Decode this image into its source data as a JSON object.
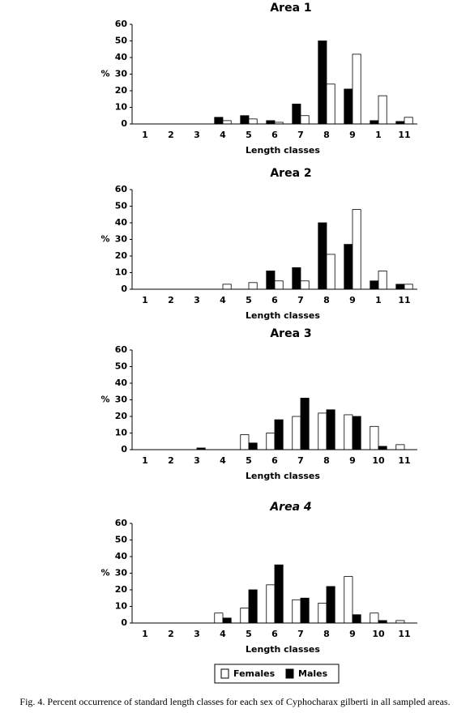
{
  "chart_data": [
    {
      "type": "bar",
      "title": "Area 1",
      "ylabel": "%",
      "xlabel": "Length classes",
      "categories": [
        "1",
        "2",
        "3",
        "4",
        "5",
        "6",
        "7",
        "8",
        "9",
        "1",
        "11"
      ],
      "series": [
        {
          "color": "#000000",
          "values": [
            0,
            0,
            0,
            4,
            5,
            2,
            12,
            50,
            21,
            2,
            1.5
          ]
        },
        {
          "color": "#ffffff",
          "values": [
            0,
            0,
            0,
            2,
            3,
            1,
            5,
            24,
            42,
            17,
            4
          ]
        }
      ],
      "ylim": [
        0,
        60
      ],
      "yticks": [
        0,
        10,
        20,
        30,
        40,
        50,
        60
      ]
    },
    {
      "type": "bar",
      "title": "Area 2",
      "ylabel": "%",
      "xlabel": "Length classes",
      "categories": [
        "1",
        "2",
        "3",
        "4",
        "5",
        "6",
        "7",
        "8",
        "9",
        "1",
        "11"
      ],
      "series": [
        {
          "color": "#000000",
          "values": [
            0,
            0,
            0,
            0,
            0,
            11,
            13,
            40,
            27,
            5,
            3
          ]
        },
        {
          "color": "#ffffff",
          "values": [
            0,
            0,
            0,
            3,
            4,
            5,
            5,
            21,
            48,
            11,
            3
          ]
        }
      ],
      "ylim": [
        0,
        60
      ],
      "yticks": [
        0,
        10,
        20,
        30,
        40,
        50,
        60
      ]
    },
    {
      "type": "bar",
      "title": "Area 3",
      "ylabel": "%",
      "xlabel": "Length classes",
      "categories": [
        "1",
        "2",
        "3",
        "4",
        "5",
        "6",
        "7",
        "8",
        "9",
        "10",
        "11"
      ],
      "series": [
        {
          "color": "#ffffff",
          "values": [
            0,
            0,
            0,
            0,
            9,
            10,
            20,
            22,
            21,
            14,
            3
          ]
        },
        {
          "color": "#000000",
          "values": [
            0,
            0,
            1,
            0,
            4,
            18,
            31,
            24,
            20,
            2,
            0
          ]
        }
      ],
      "ylim": [
        0,
        60
      ],
      "yticks": [
        0,
        10,
        20,
        30,
        40,
        50,
        60
      ]
    },
    {
      "type": "bar",
      "title": "Area 4",
      "ylabel": "%",
      "xlabel": "Length classes",
      "categories": [
        "1",
        "2",
        "3",
        "4",
        "5",
        "6",
        "7",
        "8",
        "9",
        "10",
        "11"
      ],
      "series": [
        {
          "name": "Females",
          "color": "#ffffff",
          "values": [
            0,
            0,
            0,
            6,
            9,
            23,
            14,
            12,
            28,
            6,
            1.5
          ]
        },
        {
          "name": "Males",
          "color": "#000000",
          "values": [
            0,
            0,
            0,
            3,
            20,
            35,
            15,
            22,
            5,
            1.5,
            0
          ]
        }
      ],
      "ylim": [
        0,
        60
      ],
      "yticks": [
        0,
        10,
        20,
        30,
        40,
        50,
        60
      ]
    }
  ],
  "caption": "Fig. 4. Percent occurrence of standard length classes for each sex of Cyphocharax gilberti in all sampled areas."
}
